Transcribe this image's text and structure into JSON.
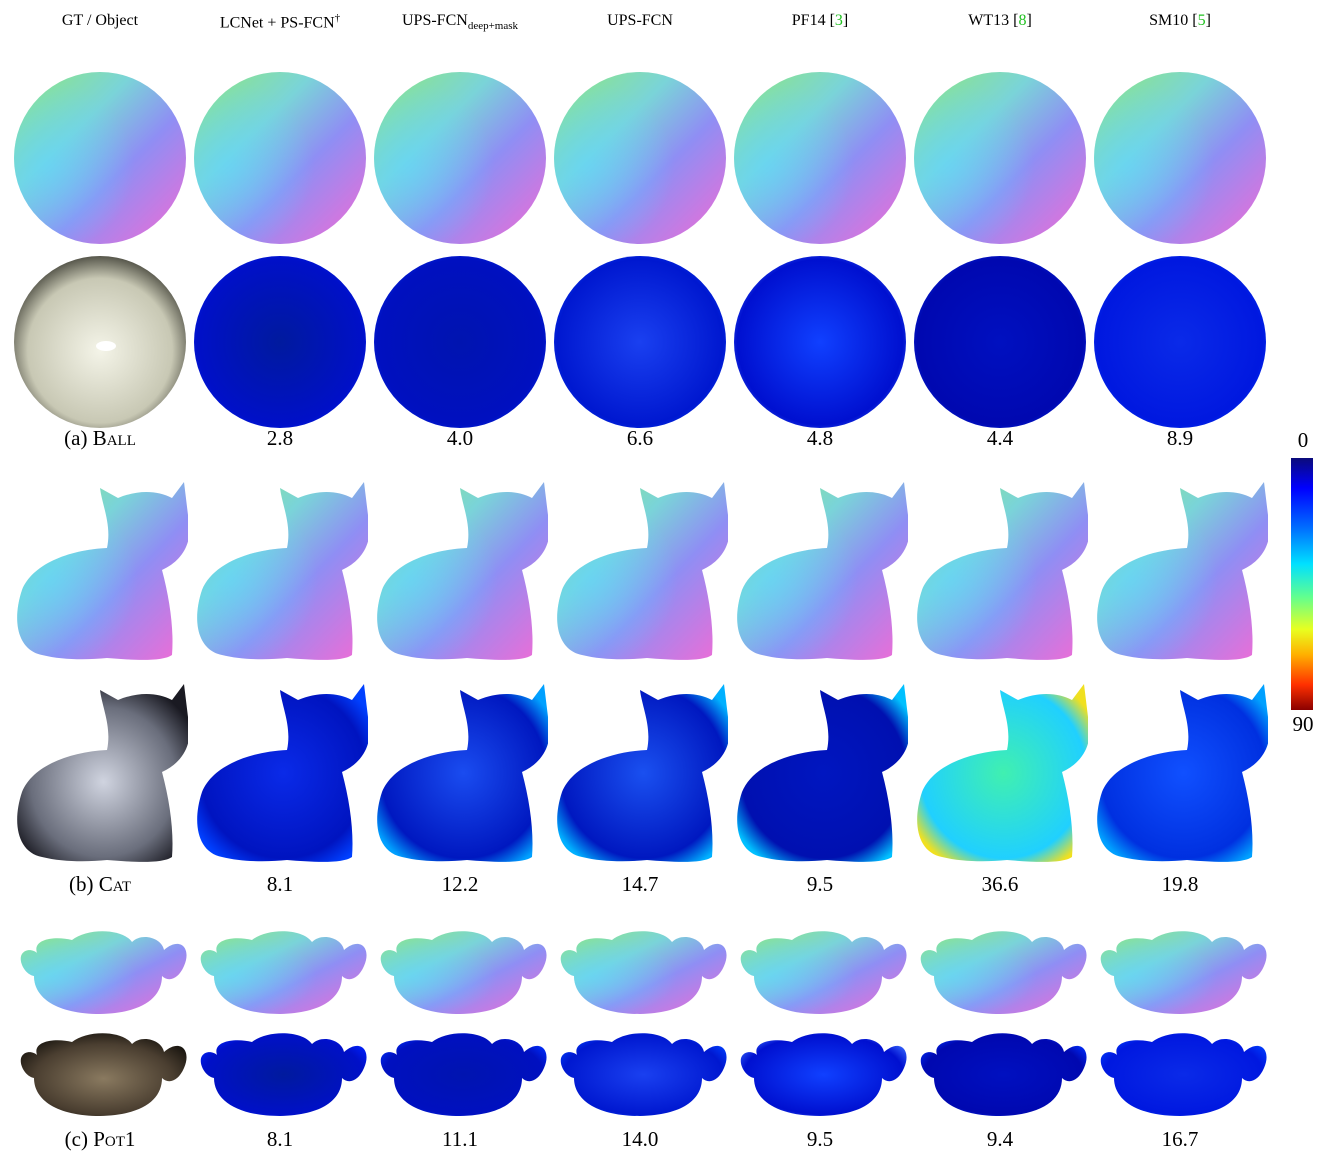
{
  "columns": [
    {
      "name": "GT / Object"
    },
    {
      "name": "LCNet + PS-FCN",
      "sup": "†"
    },
    {
      "name": "UPS-FCN",
      "sub": "deep+mask"
    },
    {
      "name": "UPS-FCN"
    },
    {
      "name": "PF14 ",
      "ref": "3",
      "suffix_open": "[",
      "suffix_close": "]"
    },
    {
      "name": "WT13 ",
      "ref": "8",
      "suffix_open": "[",
      "suffix_close": "]"
    },
    {
      "name": "SM10 ",
      "ref": "5",
      "suffix_open": "[",
      "suffix_close": "]"
    }
  ],
  "rows": [
    {
      "label_prefix": "(a) ",
      "label_name": "Ball",
      "errors": [
        "2.8",
        "4.0",
        "6.6",
        "4.8",
        "4.4",
        "8.9"
      ]
    },
    {
      "label_prefix": "(b) ",
      "label_name": "Cat",
      "errors": [
        "8.1",
        "12.2",
        "14.7",
        "9.5",
        "36.6",
        "19.8"
      ]
    },
    {
      "label_prefix": "(c) ",
      "label_name": "Pot1",
      "errors": [
        "8.1",
        "11.1",
        "14.0",
        "9.5",
        "9.4",
        "16.7"
      ]
    }
  ],
  "colorbar": {
    "min": "0",
    "max": "90"
  }
}
